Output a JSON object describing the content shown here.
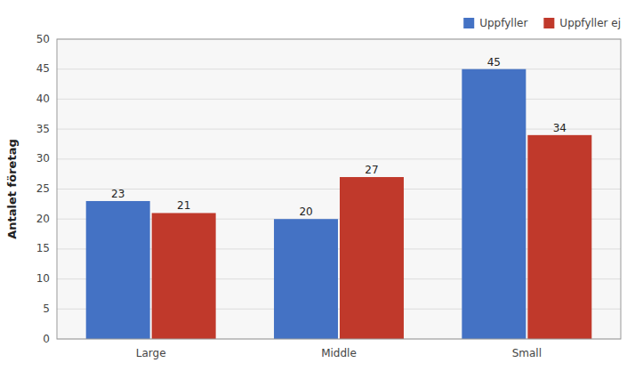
{
  "chart_data": {
    "type": "bar",
    "categories": [
      "Large",
      "Middle",
      "Small"
    ],
    "series": [
      {
        "name": "Uppfyller",
        "color": "#4472C4",
        "values": [
          23,
          20,
          45
        ]
      },
      {
        "name": "Uppfyller ej",
        "color": "#C0392B",
        "values": [
          21,
          27,
          34
        ]
      }
    ],
    "ylabel": "Antalet företag",
    "ylim": [
      0,
      50
    ],
    "yticks": [
      0,
      5,
      10,
      15,
      20,
      25,
      30,
      35,
      40,
      45,
      50
    ],
    "grid": true,
    "legend": "upper right",
    "data_labels": true
  }
}
